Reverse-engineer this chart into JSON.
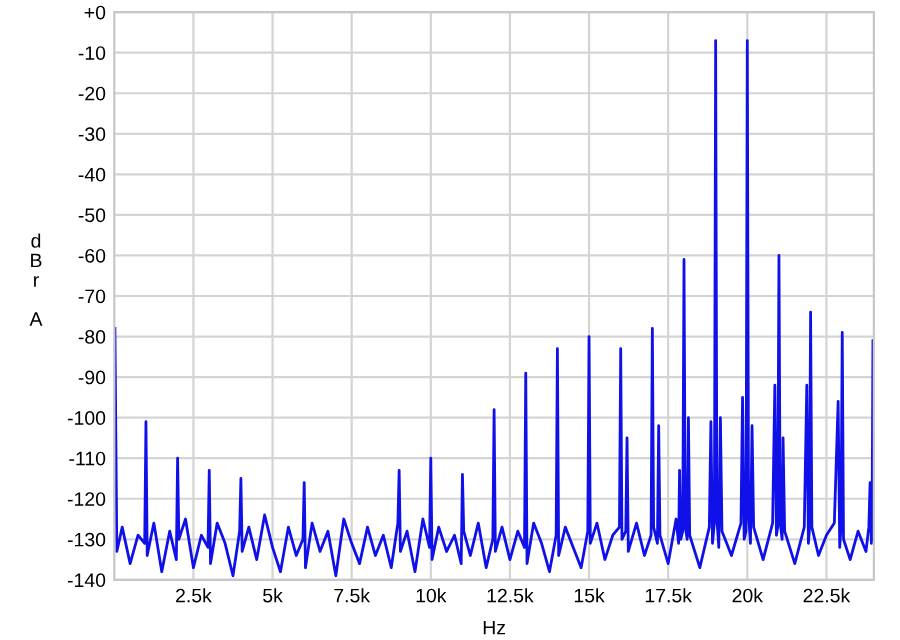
{
  "chart_data": {
    "type": "line",
    "xlabel": "Hz",
    "ylabel": "dBr A",
    "xlim": [
      0,
      24000
    ],
    "ylim": [
      -140,
      0
    ],
    "xticks": [
      {
        "value": 2500,
        "label": "2.5k"
      },
      {
        "value": 5000,
        "label": "5k"
      },
      {
        "value": 7500,
        "label": "7.5k"
      },
      {
        "value": 10000,
        "label": "10k"
      },
      {
        "value": 12500,
        "label": "12.5k"
      },
      {
        "value": 15000,
        "label": "15k"
      },
      {
        "value": 17500,
        "label": "17.5k"
      },
      {
        "value": 20000,
        "label": "20k"
      },
      {
        "value": 22500,
        "label": "22.5k"
      }
    ],
    "yticks": [
      {
        "value": 0,
        "label": "+0"
      },
      -10,
      -20,
      -30,
      -40,
      -50,
      -60,
      -70,
      -80,
      -90,
      -100,
      -110,
      -120,
      -130,
      -140
    ],
    "grid": true,
    "marker": "none",
    "line_style": "solid",
    "series": [
      {
        "color": "#1010e8",
        "x": [
          20,
          80,
          250,
          500,
          750,
          960,
          1000,
          1040,
          1250,
          1500,
          1750,
          1960,
          2000,
          2040,
          2250,
          2500,
          2750,
          2960,
          3000,
          3040,
          3250,
          3500,
          3750,
          3960,
          4000,
          4040,
          4250,
          4500,
          4750,
          5000,
          5250,
          5500,
          5750,
          5960,
          6000,
          6040,
          6250,
          6500,
          6750,
          7000,
          7250,
          7500,
          7750,
          8000,
          8250,
          8500,
          8750,
          8960,
          9000,
          9040,
          9250,
          9500,
          9750,
          9960,
          10000,
          10040,
          10250,
          10500,
          10750,
          10960,
          11000,
          11040,
          11250,
          11500,
          11750,
          11960,
          12000,
          12040,
          12250,
          12500,
          12750,
          12960,
          13000,
          13040,
          13250,
          13500,
          13750,
          13960,
          14000,
          14040,
          14250,
          14500,
          14750,
          14960,
          15000,
          15040,
          15250,
          15500,
          15750,
          15960,
          16000,
          16040,
          16160,
          16200,
          16240,
          16500,
          16750,
          16960,
          17000,
          17040,
          17160,
          17200,
          17240,
          17500,
          17750,
          17830,
          17860,
          17900,
          17960,
          18000,
          18040,
          18100,
          18140,
          18180,
          18500,
          18800,
          18850,
          18900,
          18960,
          19000,
          19040,
          19100,
          19150,
          19200,
          19500,
          19800,
          19850,
          19900,
          19960,
          20000,
          20040,
          20100,
          20150,
          20200,
          20500,
          20800,
          20870,
          20920,
          20960,
          21000,
          21040,
          21100,
          21130,
          21180,
          21500,
          21800,
          21880,
          21930,
          21960,
          22000,
          22040,
          22250,
          22500,
          22750,
          22870,
          22920,
          22960,
          23000,
          23040,
          23250,
          23500,
          23750,
          23840,
          23880,
          23920,
          23940,
          23970
        ],
        "values": [
          -78,
          -133,
          -127,
          -136,
          -129,
          -131,
          -101,
          -134,
          -126,
          -138,
          -128,
          -135,
          -110,
          -130,
          -125,
          -137,
          -129,
          -132,
          -113,
          -136,
          -126,
          -131,
          -139,
          -128,
          -115,
          -133,
          -127,
          -135,
          -124,
          -132,
          -138,
          -127,
          -134,
          -130,
          -116,
          -137,
          -126,
          -133,
          -128,
          -139,
          -125,
          -131,
          -136,
          -127,
          -134,
          -129,
          -137,
          -126,
          -113,
          -133,
          -128,
          -138,
          -125,
          -132,
          -110,
          -135,
          -127,
          -133,
          -129,
          -136,
          -114,
          -128,
          -134,
          -126,
          -137,
          -130,
          -98,
          -133,
          -127,
          -135,
          -128,
          -132,
          -89,
          -136,
          -126,
          -131,
          -138,
          -129,
          -83,
          -134,
          -127,
          -132,
          -137,
          -128,
          -80,
          -131,
          -126,
          -135,
          -129,
          -127,
          -83,
          -130,
          -128,
          -105,
          -133,
          -126,
          -134,
          -129,
          -78,
          -127,
          -131,
          -102,
          -129,
          -136,
          -125,
          -131,
          -113,
          -130,
          -128,
          -61,
          -127,
          -130,
          -100,
          -129,
          -137,
          -127,
          -101,
          -131,
          -126,
          -7,
          -125,
          -132,
          -100,
          -128,
          -134,
          -126,
          -95,
          -130,
          -128,
          -7,
          -124,
          -131,
          -102,
          -127,
          -135,
          -126,
          -92,
          -129,
          -127,
          -60,
          -126,
          -130,
          -105,
          -128,
          -136,
          -127,
          -92,
          -131,
          -128,
          -74,
          -127,
          -134,
          -129,
          -126,
          -96,
          -132,
          -127,
          -79,
          -130,
          -135,
          -128,
          -133,
          -127,
          -116,
          -131,
          -129,
          -81
        ]
      }
    ]
  }
}
